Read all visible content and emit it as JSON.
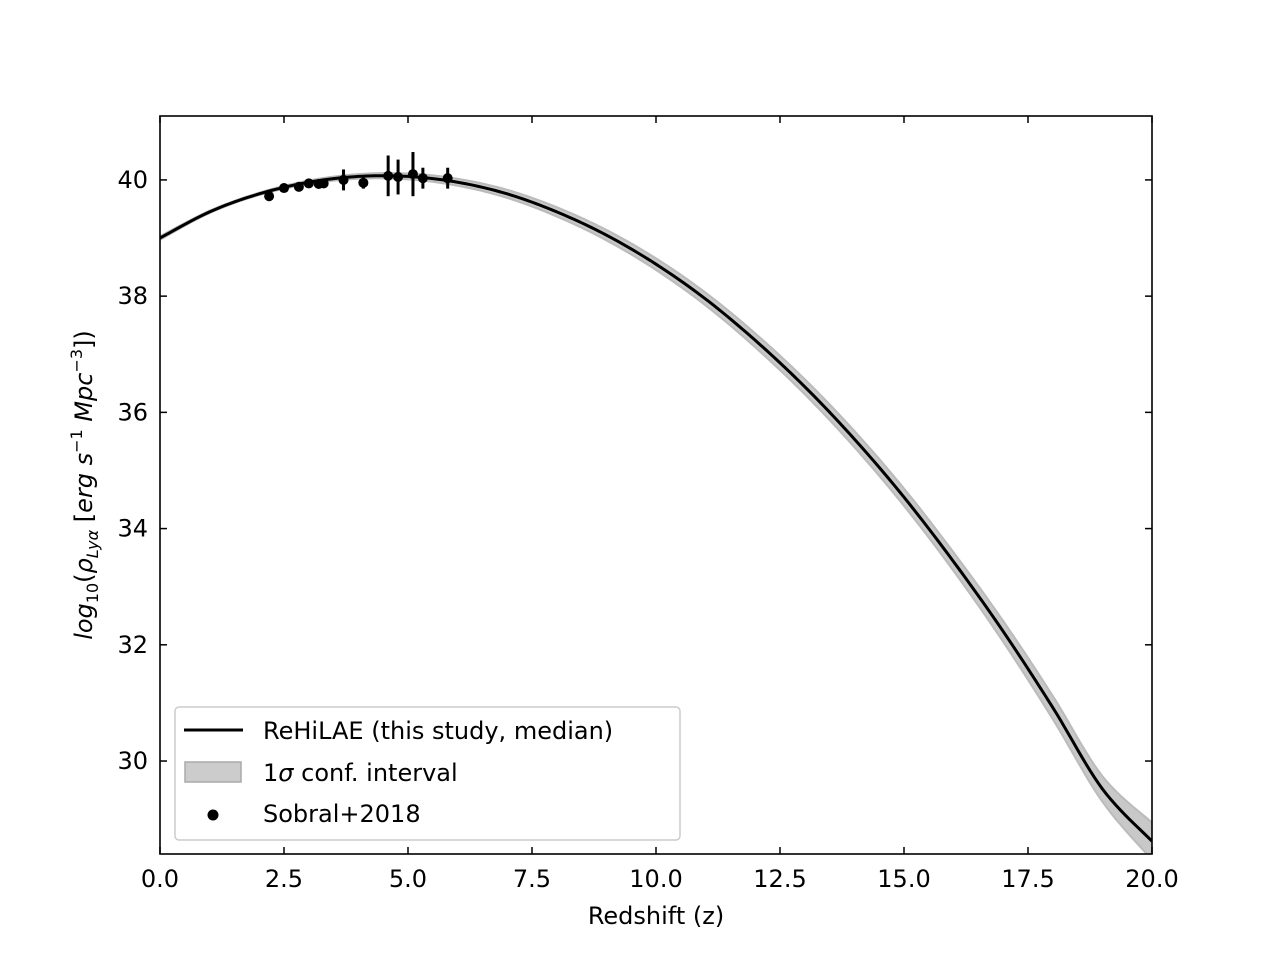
{
  "chart_data": {
    "type": "line",
    "xlabel": "Redshift (z)",
    "ylabel": {
      "prefix": "log",
      "prefix_sub": "10",
      "open": "(",
      "rho": "ρ",
      "rho_sub": "Lyα",
      "bracket_open": " [",
      "erg": "erg s",
      "exp1": "−1",
      "mpc": " Mpc",
      "exp2": "−3",
      "close": "])"
    },
    "xlim": [
      0,
      20
    ],
    "ylim": [
      28.4,
      41.1
    ],
    "xticks": [
      0,
      2.5,
      5,
      7.5,
      10,
      12.5,
      15,
      17.5,
      20
    ],
    "xtick_labels": [
      "0.0",
      "2.5",
      "5.0",
      "7.5",
      "10.0",
      "12.5",
      "15.0",
      "17.5",
      "20.0"
    ],
    "yticks": [
      30,
      32,
      34,
      36,
      38,
      40
    ],
    "ytick_labels": [
      "30",
      "32",
      "34",
      "36",
      "38",
      "40"
    ],
    "grid": false,
    "legend_position": "lower-left",
    "series": [
      {
        "name": "ReHiLAE (this study, median)",
        "kind": "line",
        "color": "#000000",
        "x": [
          0,
          1,
          2,
          3,
          4,
          5,
          6,
          7,
          8,
          9,
          10,
          11,
          12,
          13,
          14,
          15,
          16,
          17,
          18,
          19,
          20
        ],
        "y": [
          39.0,
          39.45,
          39.76,
          39.96,
          40.06,
          40.06,
          39.96,
          39.76,
          39.45,
          39.05,
          38.55,
          37.95,
          37.24,
          36.44,
          35.54,
          34.54,
          33.43,
          32.23,
          30.92,
          29.52,
          28.62
        ]
      },
      {
        "name": "1σ conf. interval",
        "name_parts": [
          "1",
          "σ",
          " conf. interval"
        ],
        "kind": "band",
        "color": "#bbbbbb",
        "x": [
          0,
          1,
          2,
          3,
          4,
          5,
          6,
          7,
          8,
          9,
          10,
          11,
          12,
          13,
          14,
          15,
          16,
          17,
          18,
          19,
          20
        ],
        "lower": [
          38.97,
          39.43,
          39.74,
          39.93,
          40.02,
          40.01,
          39.9,
          39.69,
          39.37,
          38.96,
          38.45,
          37.84,
          37.12,
          36.31,
          35.4,
          34.39,
          33.27,
          32.05,
          30.72,
          29.3,
          28.3
        ],
        "upper": [
          39.03,
          39.47,
          39.78,
          39.99,
          40.1,
          40.11,
          40.02,
          39.83,
          39.53,
          39.14,
          38.65,
          38.06,
          37.36,
          36.57,
          35.68,
          34.69,
          33.59,
          32.41,
          31.12,
          29.74,
          28.94
        ]
      },
      {
        "name": "Sobral+2018",
        "kind": "errorbar",
        "color": "#000000",
        "points": [
          {
            "x": 2.2,
            "y": 39.72,
            "err": 0.05
          },
          {
            "x": 2.5,
            "y": 39.86,
            "err": 0.06
          },
          {
            "x": 2.8,
            "y": 39.88,
            "err": 0.07
          },
          {
            "x": 3.0,
            "y": 39.94,
            "err": 0.06
          },
          {
            "x": 3.2,
            "y": 39.93,
            "err": 0.05
          },
          {
            "x": 3.3,
            "y": 39.94,
            "err": 0.05
          },
          {
            "x": 3.7,
            "y": 40.0,
            "err": 0.18
          },
          {
            "x": 4.1,
            "y": 39.95,
            "err": 0.1
          },
          {
            "x": 4.6,
            "y": 40.07,
            "err": 0.35
          },
          {
            "x": 4.8,
            "y": 40.05,
            "err": 0.3
          },
          {
            "x": 5.1,
            "y": 40.1,
            "err": 0.38
          },
          {
            "x": 5.3,
            "y": 40.03,
            "err": 0.18
          },
          {
            "x": 5.8,
            "y": 40.03,
            "err": 0.18
          }
        ]
      }
    ]
  }
}
